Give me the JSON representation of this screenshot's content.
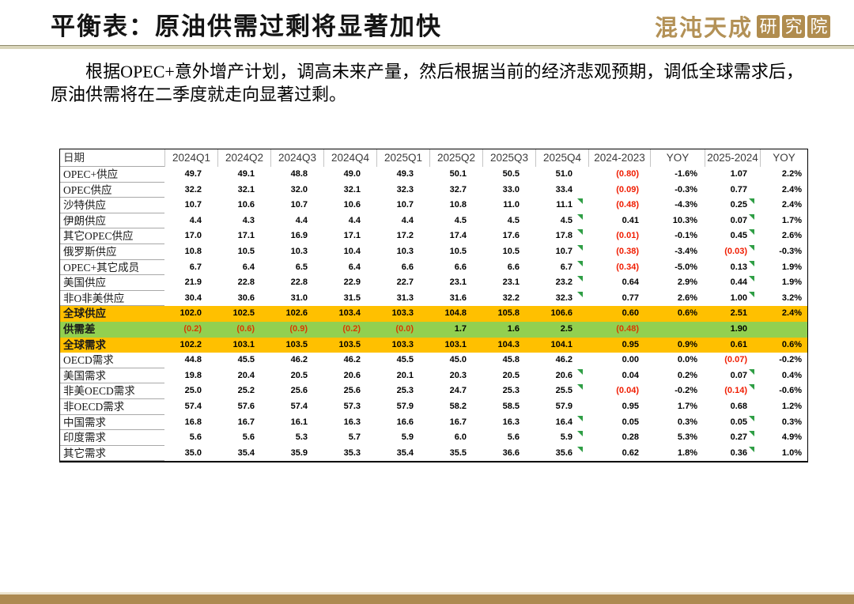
{
  "header": {
    "title": "平衡表：原油供需过剩将显著加快",
    "logo_brand": "混沌天成",
    "logo_institute": "研究院"
  },
  "paragraph": "根据OPEC+意外增产计划，调高未来产量，然后根据当前的经济悲观预期，调低全球需求后，原油供需将在二季度就走向显著过剩。",
  "colors": {
    "highlight_orange": "#FFC000",
    "highlight_green": "#92D050",
    "negative_red": "#FF0000",
    "flag_green": "#2F9E45",
    "brand_gold": "#AE8B52"
  },
  "table": {
    "headers": [
      "日期",
      "2024Q1",
      "2024Q2",
      "2024Q3",
      "2024Q4",
      "2025Q1",
      "2025Q2",
      "2025Q3",
      "2025Q4",
      "2024-2023",
      "YOY",
      "2025-2024",
      "YOY"
    ],
    "rows": [
      {
        "label": "OPEC+供应",
        "cells": [
          "49.7",
          "49.1",
          "48.8",
          "49.0",
          "49.3",
          "50.1",
          "50.5",
          "51.0",
          "(0.80)",
          "-1.6%",
          "1.07",
          "2.2%"
        ],
        "style": "normal",
        "flag": false
      },
      {
        "label": "OPEC供应",
        "cells": [
          "32.2",
          "32.1",
          "32.0",
          "32.1",
          "32.3",
          "32.7",
          "33.0",
          "33.4",
          "(0.09)",
          "-0.3%",
          "0.77",
          "2.4%"
        ],
        "style": "normal",
        "flag": false
      },
      {
        "label": "沙特供应",
        "cells": [
          "10.7",
          "10.6",
          "10.7",
          "10.6",
          "10.7",
          "10.8",
          "11.0",
          "11.1",
          "(0.48)",
          "-4.3%",
          "0.25",
          "2.4%"
        ],
        "style": "normal",
        "flag": true
      },
      {
        "label": "伊朗供应",
        "cells": [
          "4.4",
          "4.3",
          "4.4",
          "4.4",
          "4.4",
          "4.5",
          "4.5",
          "4.5",
          "0.41",
          "10.3%",
          "0.07",
          "1.7%"
        ],
        "style": "normal",
        "flag": true
      },
      {
        "label": "其它OPEC供应",
        "cells": [
          "17.0",
          "17.1",
          "16.9",
          "17.1",
          "17.2",
          "17.4",
          "17.6",
          "17.8",
          "(0.01)",
          "-0.1%",
          "0.45",
          "2.6%"
        ],
        "style": "normal",
        "flag": true
      },
      {
        "label": "俄罗斯供应",
        "cells": [
          "10.8",
          "10.5",
          "10.3",
          "10.4",
          "10.3",
          "10.5",
          "10.5",
          "10.7",
          "(0.38)",
          "-3.4%",
          "(0.03)",
          "-0.3%"
        ],
        "style": "normal",
        "flag": true
      },
      {
        "label": "OPEC+其它成员",
        "cells": [
          "6.7",
          "6.4",
          "6.5",
          "6.4",
          "6.6",
          "6.6",
          "6.6",
          "6.7",
          "(0.34)",
          "-5.0%",
          "0.13",
          "1.9%"
        ],
        "style": "normal",
        "flag": true
      },
      {
        "label": "美国供应",
        "cells": [
          "21.9",
          "22.8",
          "22.8",
          "22.9",
          "22.7",
          "23.1",
          "23.1",
          "23.2",
          "0.64",
          "2.9%",
          "0.44",
          "1.9%"
        ],
        "style": "normal",
        "flag": true
      },
      {
        "label": "非O非美供应",
        "cells": [
          "30.4",
          "30.6",
          "31.0",
          "31.5",
          "31.3",
          "31.6",
          "32.2",
          "32.3",
          "0.77",
          "2.6%",
          "1.00",
          "3.2%"
        ],
        "style": "normal",
        "flag": true
      },
      {
        "label": "全球供应",
        "cells": [
          "102.0",
          "102.5",
          "102.6",
          "103.4",
          "103.3",
          "104.8",
          "105.8",
          "106.6",
          "0.60",
          "0.6%",
          "2.51",
          "2.4%"
        ],
        "style": "orange",
        "flag": false
      },
      {
        "label": "供需差",
        "cells": [
          "(0.2)",
          "(0.6)",
          "(0.9)",
          "(0.2)",
          "(0.0)",
          "1.7",
          "1.6",
          "2.5",
          "(0.48)",
          "",
          "1.90",
          ""
        ],
        "style": "green",
        "flag": false
      },
      {
        "label": "全球需求",
        "cells": [
          "102.2",
          "103.1",
          "103.5",
          "103.5",
          "103.3",
          "103.1",
          "104.3",
          "104.1",
          "0.95",
          "0.9%",
          "0.61",
          "0.6%"
        ],
        "style": "orange",
        "flag": false
      },
      {
        "label": "OECD需求",
        "cells": [
          "44.8",
          "45.5",
          "46.2",
          "46.2",
          "45.5",
          "45.0",
          "45.8",
          "46.2",
          "0.00",
          "0.0%",
          "(0.07)",
          "-0.2%"
        ],
        "style": "normal",
        "flag": false
      },
      {
        "label": "美国需求",
        "cells": [
          "19.8",
          "20.4",
          "20.5",
          "20.6",
          "20.1",
          "20.3",
          "20.5",
          "20.6",
          "0.04",
          "0.2%",
          "0.07",
          "0.4%"
        ],
        "style": "normal",
        "flag": true
      },
      {
        "label": "非美OECD需求",
        "cells": [
          "25.0",
          "25.2",
          "25.6",
          "25.6",
          "25.3",
          "24.7",
          "25.3",
          "25.5",
          "(0.04)",
          "-0.2%",
          "(0.14)",
          "-0.6%"
        ],
        "style": "normal",
        "flag": true
      },
      {
        "label": "非OECD需求",
        "cells": [
          "57.4",
          "57.6",
          "57.4",
          "57.3",
          "57.9",
          "58.2",
          "58.5",
          "57.9",
          "0.95",
          "1.7%",
          "0.68",
          "1.2%"
        ],
        "style": "normal",
        "flag": false
      },
      {
        "label": "中国需求",
        "cells": [
          "16.8",
          "16.7",
          "16.1",
          "16.3",
          "16.6",
          "16.7",
          "16.3",
          "16.4",
          "0.05",
          "0.3%",
          "0.05",
          "0.3%"
        ],
        "style": "normal",
        "flag": true
      },
      {
        "label": "印度需求",
        "cells": [
          "5.6",
          "5.6",
          "5.3",
          "5.7",
          "5.9",
          "6.0",
          "5.6",
          "5.9",
          "0.28",
          "5.3%",
          "0.27",
          "4.9%"
        ],
        "style": "normal",
        "flag": true
      },
      {
        "label": "其它需求",
        "cells": [
          "35.0",
          "35.4",
          "35.9",
          "35.3",
          "35.4",
          "35.5",
          "36.6",
          "35.6",
          "0.62",
          "1.8%",
          "0.36",
          "1.0%"
        ],
        "style": "normal",
        "flag": true
      }
    ]
  }
}
